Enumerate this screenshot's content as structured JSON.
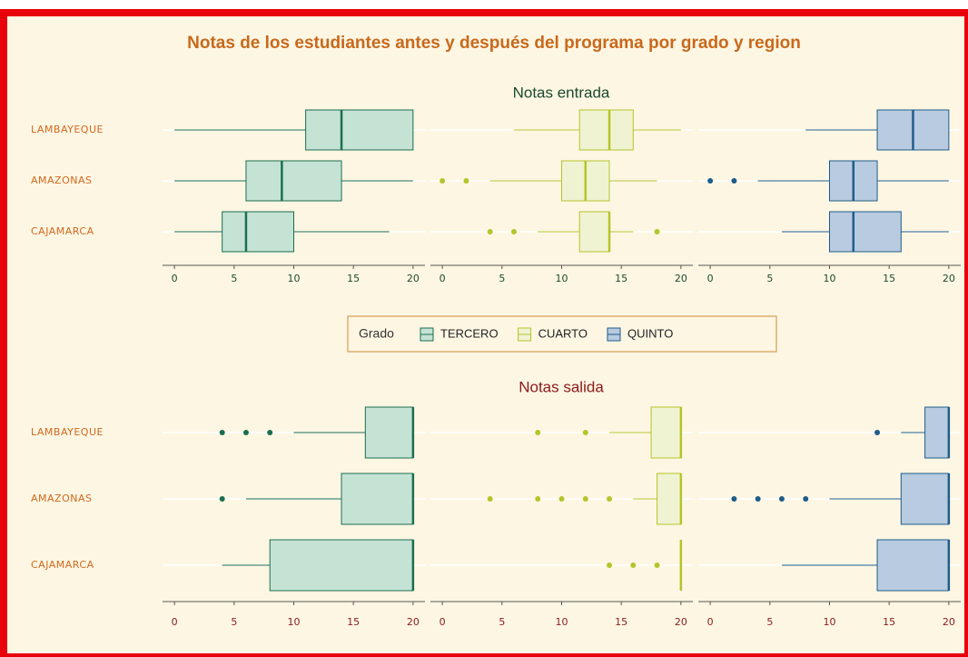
{
  "title": "Notas de los estudiantes antes y después del programa por grado y region",
  "legend": {
    "title": "Grado"
  },
  "chart_data": [
    {
      "type": "box",
      "title": "Notas entrada",
      "categories": [
        "LAMBAYEQUE",
        "AMAZONAS",
        "CAJAMARCA"
      ],
      "xlim": [
        -1,
        21
      ],
      "xticks": [
        0,
        5,
        10,
        15,
        20
      ],
      "series": [
        {
          "name": "TERCERO",
          "color": "#1b6e4f",
          "fill": "#c5e3d5",
          "values": [
            {
              "min": 0,
              "q1": 11,
              "median": 14,
              "q3": 20,
              "max": 20,
              "outliers": []
            },
            {
              "min": 0,
              "q1": 6,
              "median": 9,
              "q3": 14,
              "max": 20,
              "outliers": []
            },
            {
              "min": 0,
              "q1": 4,
              "median": 6,
              "q3": 10,
              "max": 18,
              "outliers": []
            }
          ]
        },
        {
          "name": "CUARTO",
          "color": "#b5c42a",
          "fill": "#eff3d2",
          "values": [
            {
              "min": 6,
              "q1": 11.5,
              "median": 14,
              "q3": 16,
              "max": 20,
              "outliers": []
            },
            {
              "min": 4,
              "q1": 10,
              "median": 12,
              "q3": 14,
              "max": 18,
              "outliers": [
                0,
                2
              ]
            },
            {
              "min": 8,
              "q1": 11.5,
              "median": 14,
              "q3": 14,
              "max": 16,
              "outliers": [
                4,
                6,
                18
              ]
            }
          ]
        },
        {
          "name": "QUINTO",
          "color": "#1f5c8a",
          "fill": "#b8cbe0",
          "values": [
            {
              "min": 8,
              "q1": 14,
              "median": 17,
              "q3": 20,
              "max": 20,
              "outliers": []
            },
            {
              "min": 4,
              "q1": 10,
              "median": 12,
              "q3": 14,
              "max": 20,
              "outliers": [
                0,
                2
              ]
            },
            {
              "min": 6,
              "q1": 10,
              "median": 12,
              "q3": 16,
              "max": 20,
              "outliers": []
            }
          ]
        }
      ]
    },
    {
      "type": "box",
      "title": "Notas salida",
      "categories": [
        "LAMBAYEQUE",
        "AMAZONAS",
        "CAJAMARCA"
      ],
      "xlim": [
        -1,
        21
      ],
      "xticks": [
        0,
        5,
        10,
        15,
        20
      ],
      "series": [
        {
          "color": "#1b6e4f",
          "fill": "#c5e3d5",
          "values": [
            {
              "min": 10,
              "q1": 16,
              "median": 20,
              "q3": 20,
              "max": 20,
              "outliers": [
                4,
                6,
                8
              ]
            },
            {
              "min": 6,
              "q1": 14,
              "median": 20,
              "q3": 20,
              "max": 20,
              "outliers": [
                4
              ]
            },
            {
              "min": 4,
              "q1": 8,
              "median": 20,
              "q3": 20,
              "max": 20,
              "outliers": []
            }
          ]
        },
        {
          "color": "#b5c42a",
          "fill": "#eff3d2",
          "values": [
            {
              "min": 14,
              "q1": 17.5,
              "median": 20,
              "q3": 20,
              "max": 20,
              "outliers": [
                8,
                12
              ]
            },
            {
              "min": 16,
              "q1": 18,
              "median": 20,
              "q3": 20,
              "max": 20,
              "outliers": [
                4,
                8,
                10,
                12,
                14
              ]
            },
            {
              "min": 20,
              "q1": 20,
              "median": 20,
              "q3": 20,
              "max": 20,
              "outliers": [
                14,
                16,
                18
              ]
            }
          ]
        },
        {
          "color": "#1f5c8a",
          "fill": "#b8cbe0",
          "values": [
            {
              "min": 16,
              "q1": 18,
              "median": 20,
              "q3": 20,
              "max": 20,
              "outliers": [
                14
              ]
            },
            {
              "min": 10,
              "q1": 16,
              "median": 20,
              "q3": 20,
              "max": 20,
              "outliers": [
                2,
                4,
                6,
                8
              ]
            },
            {
              "min": 6,
              "q1": 14,
              "median": 20,
              "q3": 20,
              "max": 20,
              "outliers": []
            }
          ]
        }
      ]
    }
  ]
}
